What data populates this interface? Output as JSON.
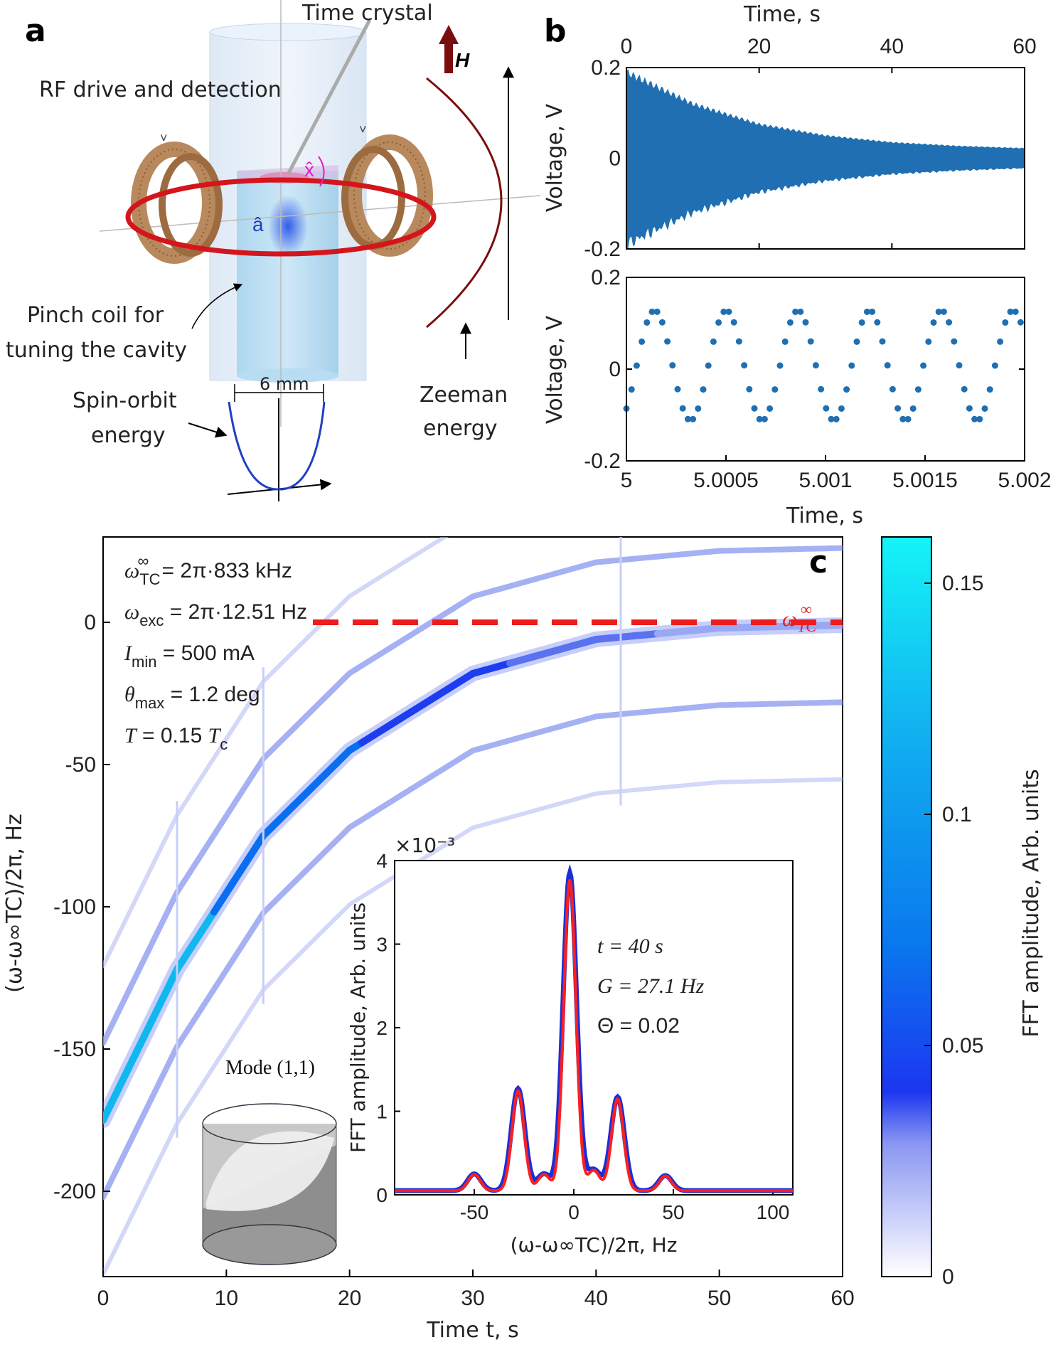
{
  "panel_a": {
    "letter": "a",
    "time_crystal": "Time crystal",
    "rf_drive": "RF drive and detection",
    "field_symbol": "H",
    "x_hat": "x̂",
    "a_hat": "â",
    "pinch_coil_line1": "Pinch coil for",
    "pinch_coil_line2": "tuning the cavity",
    "size_label": "6 mm",
    "spin_orbit_line1": "Spin-orbit",
    "spin_orbit_line2": "energy",
    "zeeman_line1": "Zeeman",
    "zeeman_line2": "energy"
  },
  "panel_b": {
    "letter": "b",
    "top_xlabel": "Time, s",
    "top_ylabel": "Voltage, V",
    "top_xticks": [
      "0",
      "20",
      "40",
      "60"
    ],
    "top_yticks": [
      "0.2",
      "0",
      "-0.2"
    ],
    "bot_ylabel": "Voltage, V",
    "bot_xlabel": "Time, s",
    "bot_xticks": [
      "5",
      "5.0005",
      "5.001",
      "5.0015",
      "5.002"
    ],
    "bot_yticks": [
      "0.2",
      "0",
      "-0.2"
    ],
    "signal_color": "#1f6fb2"
  },
  "panel_c": {
    "letter": "c",
    "ann1_pre": "ω",
    "ann1_sub": "TC",
    "ann1_sup": "∞",
    "ann1_rest": " = 2π·833 kHz",
    "ann2_pre": "ω",
    "ann2_sub": "exc",
    "ann2_rest": " = 2π·12.51 Hz",
    "ann3_pre": "I",
    "ann3_sub": "min",
    "ann3_rest": " = 500 mA",
    "ann4_pre": "θ",
    "ann4_sub": "max",
    "ann4_rest": " = 1.2 deg",
    "ann5_pre": "T",
    "ann5_mid": " = 0.15 ",
    "ann5_t": "T",
    "ann5_sub": "c",
    "omega_line_label": "ω",
    "omega_line_sub": "TC",
    "omega_line_sup": "∞",
    "ylabel": "(ω-ω∞TC)/2π, Hz",
    "xlabel": "Time t, s",
    "xticks": [
      "0",
      "10",
      "20",
      "30",
      "40",
      "50",
      "60"
    ],
    "yticks": [
      "0",
      "-50",
      "-100",
      "-150",
      "-200"
    ],
    "mode_label": "Mode (1,1)",
    "colorbar_label": "FFT amplitude, Arb. units",
    "colorbar_ticks": [
      "0.15",
      "0.1",
      "0.05",
      "0"
    ],
    "inset": {
      "multiplier": "×10⁻³",
      "ylabel": "FFT amplitude, Arb. units",
      "xlabel": "(ω-ω∞TC)/2π, Hz",
      "xticks": [
        "-50",
        "0",
        "50",
        "100"
      ],
      "yticks": [
        "4",
        "3",
        "2",
        "1",
        "0"
      ],
      "t_label": "t = 40 s",
      "g_label": "G = 27.1 Hz",
      "theta_label": "Θ = 0.02"
    }
  },
  "chart_data": [
    {
      "type": "line",
      "panel": "b-top",
      "xlabel": "Time, s",
      "ylabel": "Voltage, V",
      "xlim": [
        0,
        60
      ],
      "ylim": [
        -0.2,
        0.2
      ],
      "envelope": {
        "x": [
          0,
          10,
          20,
          30,
          40,
          50,
          60
        ],
        "amplitude": [
          0.19,
          0.12,
          0.075,
          0.05,
          0.035,
          0.027,
          0.022
        ]
      }
    },
    {
      "type": "scatter",
      "panel": "b-bottom",
      "xlabel": "Time, s",
      "ylabel": "Voltage, V",
      "xlim": [
        5,
        5.002
      ],
      "ylim": [
        -0.2,
        0.2
      ],
      "amplitude": 0.12,
      "period_s": 0.00036
    },
    {
      "type": "heatmap",
      "panel": "c",
      "xlabel": "Time t, s",
      "ylabel": "(ω-ω∞TC)/2π, Hz",
      "xlim": [
        0,
        60
      ],
      "ylim": [
        -230,
        30
      ],
      "center_line": {
        "t": [
          0,
          6,
          13,
          20,
          30,
          40,
          50,
          60
        ],
        "f": [
          -175,
          -122,
          -75,
          -45,
          -18,
          -6,
          -2,
          -1
        ]
      },
      "sideband_offset_hz": 27.1,
      "reference_line_hz": 0,
      "colorbar_range": [
        0,
        0.16
      ]
    },
    {
      "type": "line",
      "panel": "c-inset",
      "xlabel": "(ω-ω∞TC)/2π, Hz",
      "ylabel": "FFT amplitude, Arb. units",
      "xlim": [
        -90,
        110
      ],
      "ylim": [
        0,
        0.004
      ],
      "peaks": {
        "x": [
          -50,
          -28,
          -15,
          -2,
          10,
          22,
          46
        ],
        "y": [
          0.0002,
          0.00122,
          0.0002,
          0.0038,
          0.00025,
          0.00112,
          0.00018
        ]
      },
      "series": [
        {
          "name": "",
          "color": "#1a2fd6"
        },
        {
          "name": "",
          "color": "#ff1f1f"
        }
      ]
    }
  ]
}
